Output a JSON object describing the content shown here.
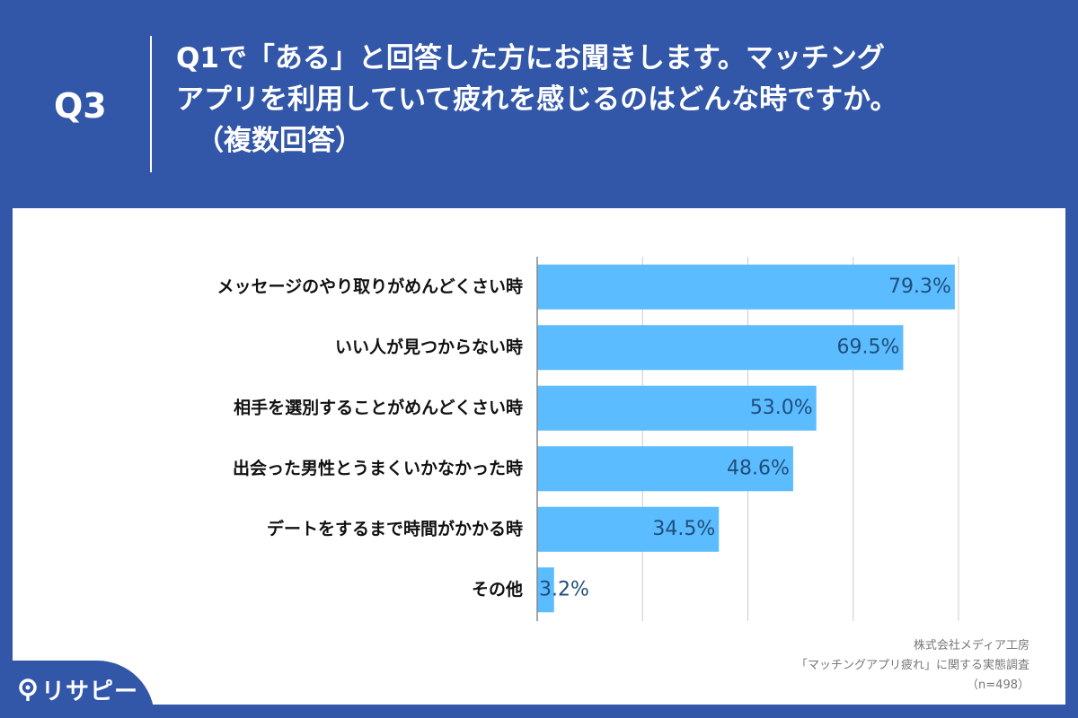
{
  "header": {
    "question_label": "Q3",
    "title_lines": [
      "Q1で「ある」と回答した方にお聞きします。マッチング",
      "アプリを利用していて疲れを感じるのはどんな時ですか。",
      "（複数回答）"
    ]
  },
  "chart_data": {
    "type": "bar",
    "orientation": "horizontal",
    "categories": [
      "メッセージのやり取りがめんどくさい時",
      "いい人が見つからない時",
      "相手を選別することがめんどくさい時",
      "出会った男性とうまくいかなかった時",
      "デートをするまで時間がかかる時",
      "その他"
    ],
    "values": [
      79.3,
      69.5,
      53.0,
      48.6,
      34.5,
      3.2
    ],
    "value_labels": [
      "79.3%",
      "69.5%",
      "53.0%",
      "48.6%",
      "34.5%",
      "3.2%"
    ],
    "xlim": [
      0,
      80
    ],
    "grid": true,
    "bar_color": "#5bbcff",
    "label_color": "#1f4e7a"
  },
  "source": {
    "lines": [
      "株式会社メディア工房",
      "「マッチングアプリ疲れ」に関する実態調査",
      "（n=498）"
    ]
  },
  "logo": {
    "text": "リサピー",
    "icon": "pin-icon"
  },
  "colors": {
    "brand": "#3357a8",
    "panel": "#ffffff"
  }
}
